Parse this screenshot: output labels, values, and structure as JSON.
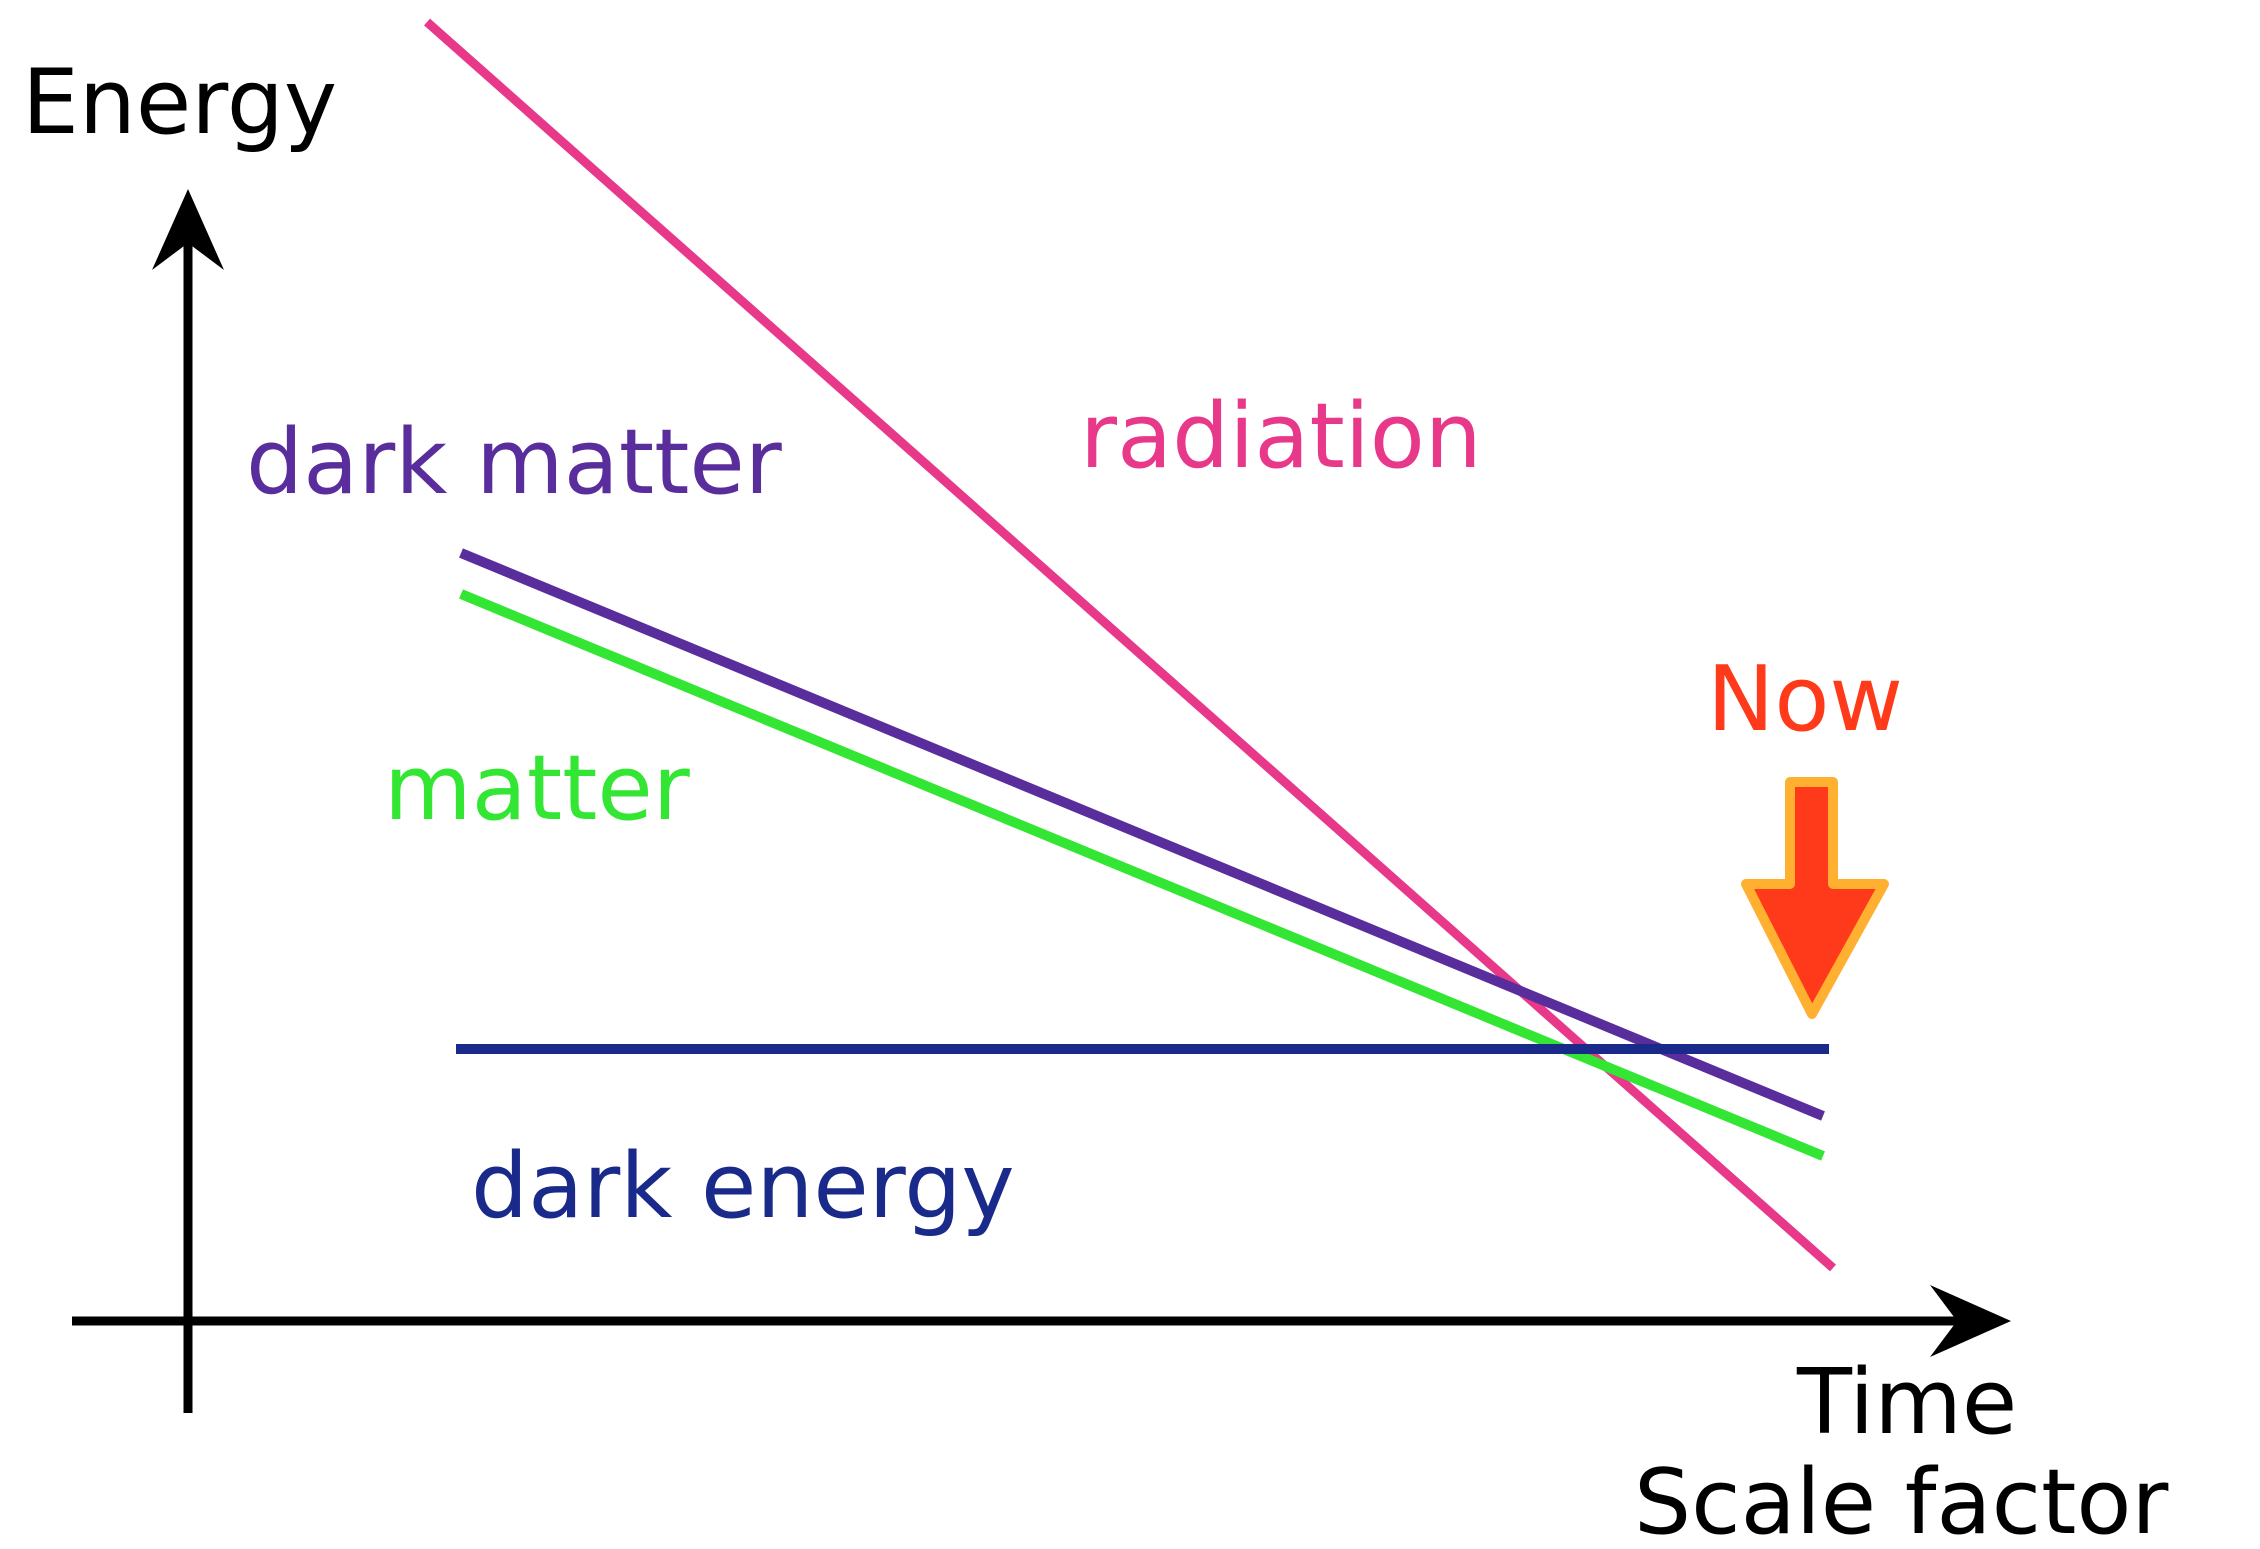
{
  "axes": {
    "y_label": "Energy",
    "x_label_1": "Time",
    "x_label_2": "Scale factor"
  },
  "curves": [
    {
      "label": "radiation"
    },
    {
      "label": "dark matter"
    },
    {
      "label": "matter"
    },
    {
      "label": "dark energy"
    }
  ],
  "marker": {
    "label": "Now"
  }
}
